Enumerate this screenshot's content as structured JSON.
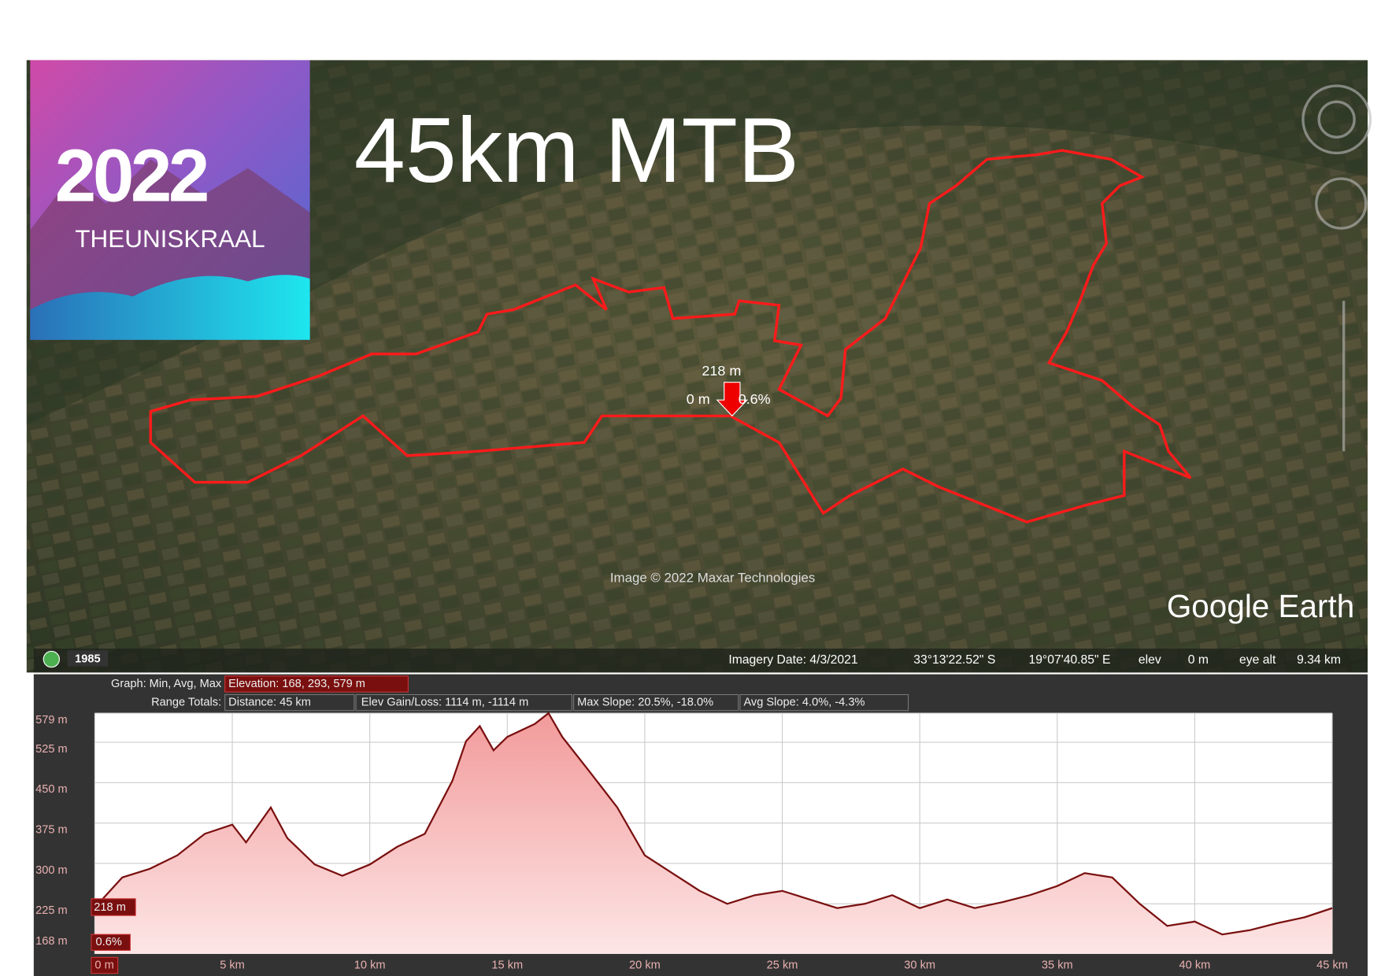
{
  "logo": {
    "year": "2022",
    "name": "THEUNISKRAAL"
  },
  "title": "45km MTB",
  "map": {
    "cursor": {
      "elevation": "218 m",
      "distance": "0 m",
      "slope": "0.6%"
    },
    "copyright": "Image © 2022 Maxar Technologies",
    "brand": "Google Earth",
    "year_badge": "1985",
    "status": {
      "imagery_date": "Imagery Date: 4/3/2021",
      "lat": "33°13'22.52\" S",
      "lon": "19°07'40.85\" E",
      "elev_label": "elev",
      "elev": "0 m",
      "eye_alt_label": "eye alt",
      "eye_alt": "9.34 km"
    }
  },
  "profile": {
    "graph_label": "Graph: Min, Avg, Max",
    "elevation": "Elevation: 168, 293, 579 m",
    "range_label": "Range Totals:",
    "distance": "Distance: 45 km",
    "gain_loss": "Elev Gain/Loss: 1114 m, -1114 m",
    "max_slope": "Max Slope: 20.5%, -18.0%",
    "avg_slope": "Avg Slope: 4.0%, -4.3%",
    "x": [
      0,
      1,
      2,
      3,
      4,
      5,
      5.5,
      6.4,
      7,
      8,
      9,
      10,
      11,
      12,
      13,
      13.5,
      14,
      14.5,
      15,
      16,
      16.5,
      17,
      18,
      19,
      20,
      21,
      22,
      23,
      24,
      25,
      26,
      27,
      28,
      29,
      30,
      31,
      32,
      33,
      34,
      35,
      36,
      37,
      38,
      39,
      40,
      41,
      42,
      43,
      44,
      45
    ],
    "values": [
      218,
      274,
      290,
      315,
      355,
      372,
      339,
      404,
      347,
      298,
      277,
      298,
      331,
      355,
      453,
      527,
      555,
      510,
      535,
      559,
      579,
      535,
      470,
      404,
      315,
      282,
      249,
      225,
      241,
      249,
      233,
      217,
      225,
      241,
      217,
      233,
      217,
      228,
      241,
      258,
      282,
      274,
      225,
      184,
      192,
      168,
      176,
      189,
      200,
      217
    ],
    "xlim": [
      0,
      45
    ],
    "ylim": [
      132,
      579
    ],
    "xticks": [
      {
        "value": 0,
        "label": "0 m"
      },
      {
        "value": 5,
        "label": "5 km"
      },
      {
        "value": 10,
        "label": "10 km"
      },
      {
        "value": 15,
        "label": "15 km"
      },
      {
        "value": 20,
        "label": "20 km"
      },
      {
        "value": 25,
        "label": "25 km"
      },
      {
        "value": 30,
        "label": "30 km"
      },
      {
        "value": 35,
        "label": "35 km"
      },
      {
        "value": 40,
        "label": "40 km"
      },
      {
        "value": 45,
        "label": "45 km"
      }
    ],
    "yticks": [
      {
        "value": 168,
        "label": "168 m"
      },
      {
        "value": 225,
        "label": "225 m"
      },
      {
        "value": 300,
        "label": "300 m"
      },
      {
        "value": 375,
        "label": "375 m"
      },
      {
        "value": 450,
        "label": "450 m"
      },
      {
        "value": 525,
        "label": "525 m"
      },
      {
        "value": 579,
        "label": "579 m"
      }
    ],
    "cursor_value": {
      "value": 218,
      "label": "218 m"
    },
    "cursor_slope": "0.6%"
  }
}
